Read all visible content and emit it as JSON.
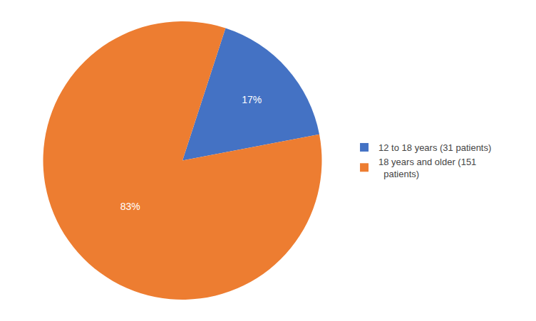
{
  "chart_data": {
    "type": "pie",
    "categories": [
      "12 to 18 years (31 patients)",
      "18 years and older (151\n  patients)"
    ],
    "values": [
      17,
      83
    ],
    "value_labels": [
      "17%",
      "83%"
    ],
    "colors": [
      "#4472C4",
      "#ED7D31"
    ],
    "data_labels": true,
    "legend": "right"
  }
}
